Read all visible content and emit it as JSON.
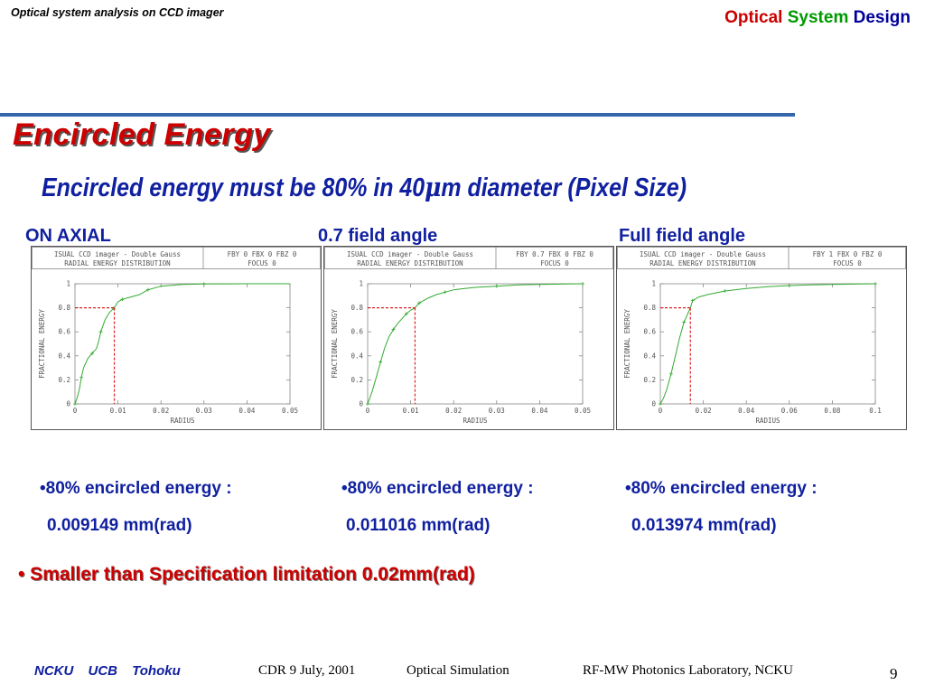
{
  "header": {
    "left": "Optical system analysis on CCD imager",
    "right_words": [
      "Optical",
      "System",
      "Design"
    ],
    "right_colors": [
      "#cc0000",
      "#009900",
      "#000099"
    ]
  },
  "slide": {
    "title": "Encircled Energy",
    "subtitle_pre": "Encircled energy must be 80% in 40",
    "subtitle_mu": "μ",
    "subtitle_post": "m diameter (Pixel Size)",
    "title_color": "#cc0000",
    "text_color": "#1020a0"
  },
  "panels": [
    {
      "label": "ON AXIAL",
      "bullet": "•80% encircled energy :",
      "value": "0.009149 mm(rad)"
    },
    {
      "label": "0.7 field angle",
      "bullet": "•80% encircled energy :",
      "value": "0.011016 mm(rad)"
    },
    {
      "label": "Full field angle",
      "bullet": "•80% encircled energy :",
      "value": "0.013974 mm(rad)"
    }
  ],
  "spec_note": "• Smaller than Specification limitation 0.02mm(rad)",
  "footer": {
    "institutions": "NCKU UCB Tohoku",
    "date": "CDR   9 July, 2001",
    "topic": "Optical Simulation",
    "lab": "RF-MW Photonics Laboratory,   NCKU",
    "page": "9"
  },
  "chart_data": [
    {
      "type": "line",
      "header_left": [
        "ISUAL CCD imager - Double Gauss",
        "RADIAL ENERGY DISTRIBUTION"
      ],
      "header_right": [
        "FBY 0 FBX 0 FBZ 0",
        "FOCUS 0"
      ],
      "xlabel": "RADIUS",
      "ylabel": "FRACTIONAL ENERGY",
      "xlim": [
        0,
        0.05
      ],
      "ylim": [
        0,
        1
      ],
      "xticks": [
        "0",
        "0.01",
        "0.02",
        "0.03",
        "0.04",
        "0.05"
      ],
      "yticks": [
        "0",
        "0.2",
        "0.4",
        "0.6",
        "0.8",
        "1"
      ],
      "series": [
        {
          "x": [
            0,
            0.0005,
            0.001,
            0.0015,
            0.002,
            0.003,
            0.004,
            0.005,
            0.0055,
            0.006,
            0.007,
            0.008,
            0.009,
            0.009149,
            0.01,
            0.011,
            0.013,
            0.015,
            0.017,
            0.02,
            0.025,
            0.03,
            0.04,
            0.05
          ],
          "y": [
            0,
            0.05,
            0.12,
            0.22,
            0.3,
            0.38,
            0.42,
            0.46,
            0.52,
            0.6,
            0.7,
            0.76,
            0.795,
            0.8,
            0.85,
            0.87,
            0.89,
            0.91,
            0.95,
            0.98,
            0.995,
            0.998,
            1.0,
            1.0
          ]
        }
      ],
      "marker": {
        "x": 0.009149,
        "y": 0.8
      },
      "marker_color": "#dd2222",
      "line_color": "#33aa33"
    },
    {
      "type": "line",
      "header_left": [
        "ISUAL CCD imager - Double Gauss",
        "RADIAL ENERGY DISTRIBUTION"
      ],
      "header_right": [
        "FBY 0.7 FBX 0 FBZ 0",
        "FOCUS 0"
      ],
      "xlabel": "RADIUS",
      "ylabel": "FRACTIONAL ENERGY",
      "xlim": [
        0,
        0.05
      ],
      "ylim": [
        0,
        1
      ],
      "xticks": [
        "0",
        "0.01",
        "0.02",
        "0.03",
        "0.04",
        "0.05"
      ],
      "yticks": [
        "0",
        "0.2",
        "0.4",
        "0.6",
        "0.8",
        "1"
      ],
      "series": [
        {
          "x": [
            0,
            0.001,
            0.002,
            0.003,
            0.004,
            0.005,
            0.006,
            0.007,
            0.008,
            0.009,
            0.01,
            0.011016,
            0.012,
            0.014,
            0.016,
            0.018,
            0.02,
            0.025,
            0.03,
            0.035,
            0.04,
            0.05
          ],
          "y": [
            0,
            0.1,
            0.22,
            0.35,
            0.47,
            0.56,
            0.62,
            0.67,
            0.71,
            0.75,
            0.78,
            0.8,
            0.84,
            0.88,
            0.91,
            0.93,
            0.95,
            0.97,
            0.98,
            0.99,
            0.995,
            1.0
          ]
        }
      ],
      "marker": {
        "x": 0.011016,
        "y": 0.8
      },
      "marker_color": "#dd2222",
      "line_color": "#33aa33"
    },
    {
      "type": "line",
      "header_left": [
        "ISUAL CCD imager - Double Gauss",
        "RADIAL ENERGY DISTRIBUTION"
      ],
      "header_right": [
        "FBY 1 FBX 0 FBZ 0",
        "FOCUS 0"
      ],
      "xlabel": "RADIUS",
      "ylabel": "FRACTIONAL ENERGY",
      "xlim": [
        0,
        0.1
      ],
      "ylim": [
        0,
        1
      ],
      "xticks": [
        "0",
        "0.02",
        "0.04",
        "0.06",
        "0.08",
        "0.1"
      ],
      "yticks": [
        "0",
        "0.2",
        "0.4",
        "0.6",
        "0.8",
        "1"
      ],
      "series": [
        {
          "x": [
            0,
            0.0015,
            0.003,
            0.005,
            0.007,
            0.009,
            0.011,
            0.013,
            0.013974,
            0.015,
            0.018,
            0.022,
            0.03,
            0.04,
            0.05,
            0.06,
            0.07,
            0.08,
            0.1
          ],
          "y": [
            0,
            0.05,
            0.12,
            0.25,
            0.4,
            0.55,
            0.68,
            0.76,
            0.8,
            0.86,
            0.89,
            0.91,
            0.94,
            0.96,
            0.975,
            0.985,
            0.99,
            0.995,
            1.0
          ]
        }
      ],
      "marker": {
        "x": 0.013974,
        "y": 0.8
      },
      "marker_color": "#dd2222",
      "line_color": "#33aa33"
    }
  ]
}
